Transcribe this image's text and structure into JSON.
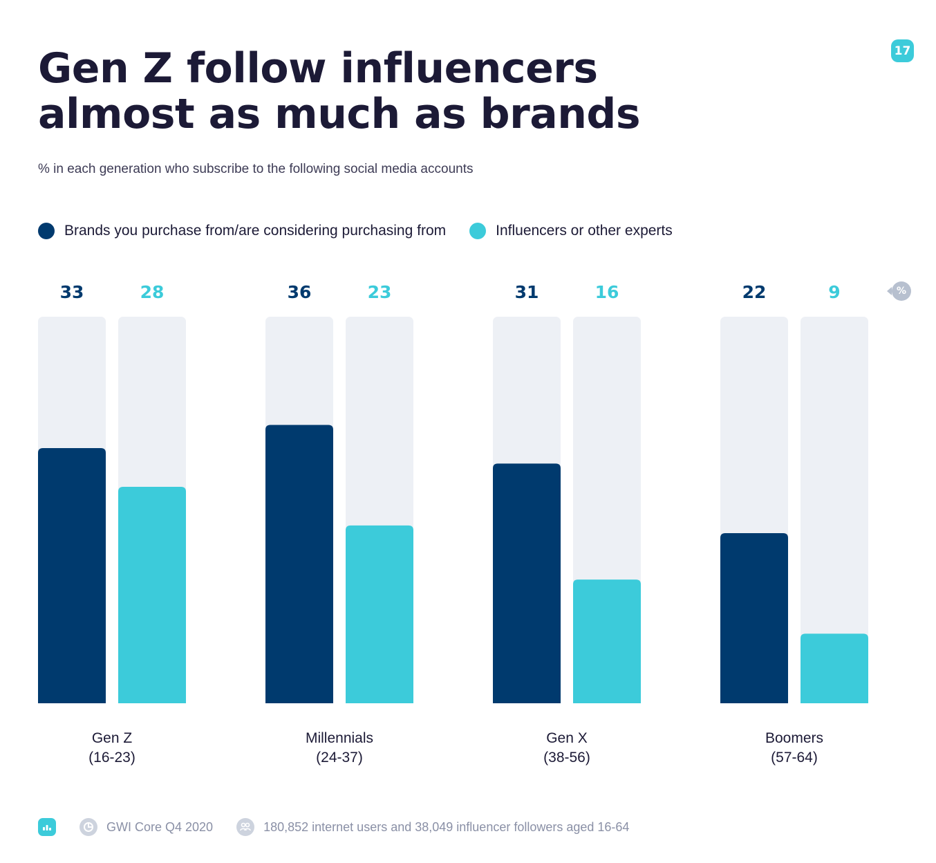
{
  "page": {
    "title_line1": "Gen Z follow influencers",
    "title_line2": "almost as much as brands",
    "page_number": "17",
    "subtitle": "% in each generation who subscribe to the following social media accounts",
    "unit_symbol": "%"
  },
  "legend": [
    {
      "label": "Brands you purchase from/are considering purchasing from",
      "color": "#003a6e"
    },
    {
      "label": "Influencers or other experts",
      "color": "#3ccbda"
    }
  ],
  "footer": {
    "source": "GWI Core Q4 2020",
    "sample": "180,852 internet users and 38,049 influencer followers aged 16-64"
  },
  "chart_data": {
    "type": "bar",
    "title": "Gen Z follow influencers almost as much as brands",
    "subtitle": "% in each generation who subscribe to the following social media accounts",
    "xlabel": "",
    "ylabel": "%",
    "ylim": [
      0,
      50
    ],
    "grid": false,
    "legend_position": "top-left",
    "categories": [
      {
        "name": "Gen Z",
        "range": "(16-23)"
      },
      {
        "name": "Millennials",
        "range": "(24-37)"
      },
      {
        "name": "Gen X",
        "range": "(38-56)"
      },
      {
        "name": "Boomers",
        "range": "(57-64)"
      }
    ],
    "series": [
      {
        "name": "Brands you purchase from/are considering purchasing from",
        "color": "#003a6e",
        "values": [
          33,
          36,
          31,
          22
        ]
      },
      {
        "name": "Influencers or other experts",
        "color": "#3ccbda",
        "values": [
          28,
          23,
          16,
          9
        ]
      }
    ],
    "track_color": "#edf0f5"
  }
}
